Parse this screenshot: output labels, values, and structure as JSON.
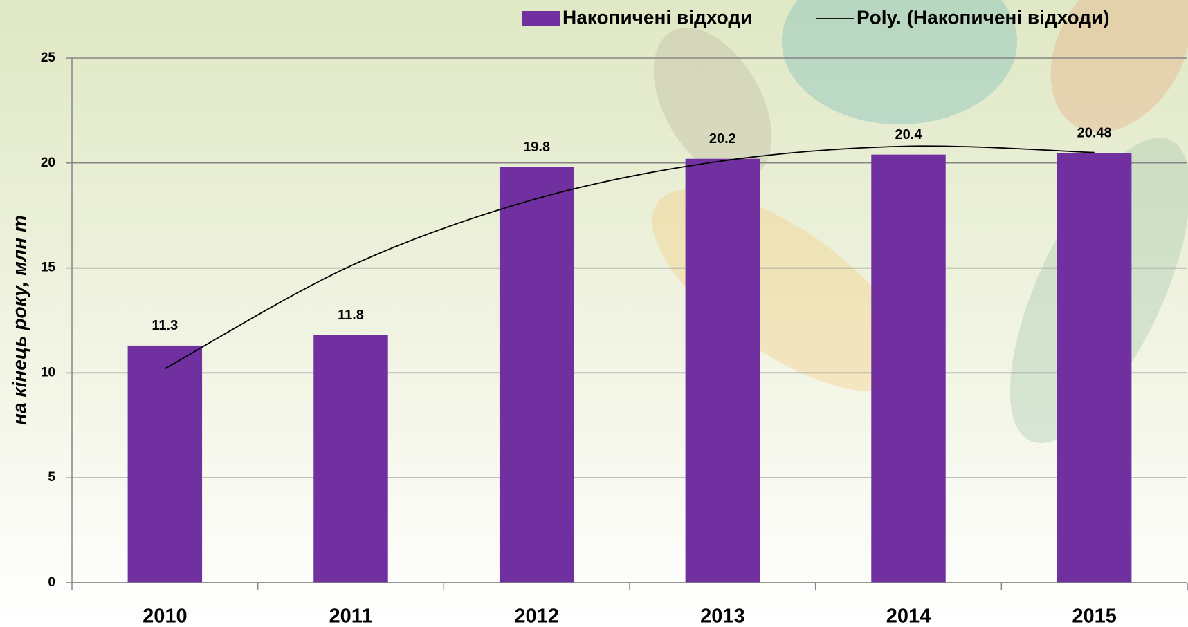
{
  "chart_data": {
    "type": "bar",
    "y_label": "на кінець року, млн т",
    "categories": [
      "2010",
      "2011",
      "2012",
      "2013",
      "2014",
      "2015"
    ],
    "series": [
      {
        "name": "Накопичені відходи",
        "type": "bar",
        "color": "#7030a0",
        "values": [
          11.3,
          11.8,
          19.8,
          20.2,
          20.4,
          20.48
        ]
      },
      {
        "name": "Poly. (Накопичені відходи)",
        "type": "line",
        "color": "#000000",
        "values": [
          10.2,
          15.1,
          18.3,
          20.1,
          20.8,
          20.5
        ]
      }
    ],
    "ylim": [
      0,
      25
    ],
    "yticks": [
      0,
      5,
      10,
      15,
      20,
      25
    ],
    "grid": true,
    "legend": "top-right"
  }
}
